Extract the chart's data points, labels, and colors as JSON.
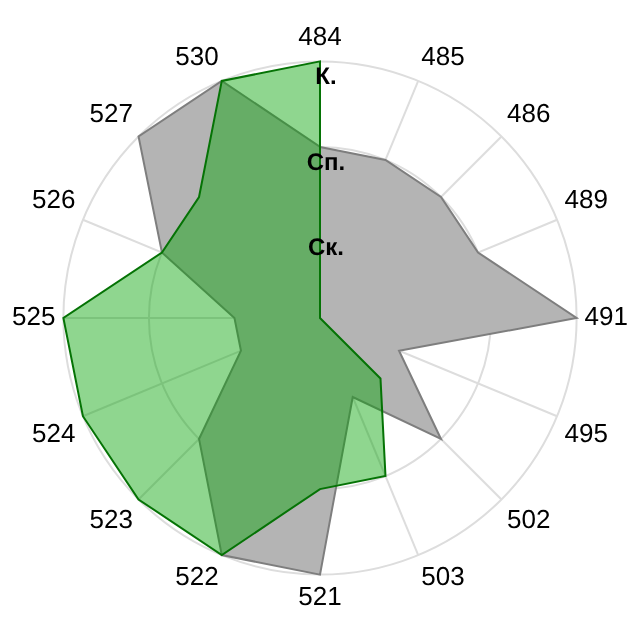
{
  "chart_data": {
    "type": "radar",
    "categories": [
      "484",
      "485",
      "486",
      "489",
      "491",
      "495",
      "502",
      "503",
      "521",
      "522",
      "523",
      "524",
      "525",
      "526",
      "527",
      "530"
    ],
    "series": [
      {
        "color": "#b4b4b4",
        "values": [
          2,
          2,
          2,
          2,
          3,
          1,
          2,
          1,
          3,
          3,
          2,
          1,
          1,
          2,
          3,
          3
        ]
      },
      {
        "color": "#07a407",
        "values": [
          3,
          0,
          0,
          0,
          0,
          0,
          1,
          2,
          2,
          3,
          3,
          3,
          3,
          2,
          2,
          3
        ]
      }
    ],
    "ylim": [
      0,
      3
    ],
    "yticks": [
      {
        "value": 1,
        "label": "Ск."
      },
      {
        "value": 2,
        "label": "Сп."
      },
      {
        "value": 3,
        "label": "К."
      }
    ],
    "grid": true,
    "legend": false,
    "marker": "none"
  }
}
